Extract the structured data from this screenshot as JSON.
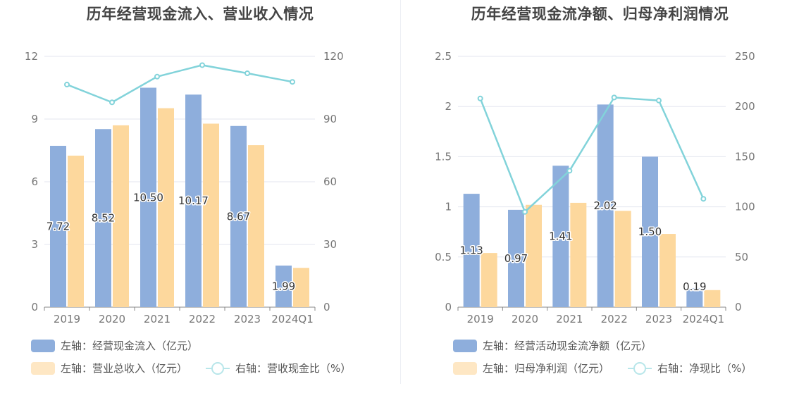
{
  "colors": {
    "bar1": "#8eaedc",
    "bar2": "#fdd89d",
    "line": "#82d3da",
    "grid": "#e3e6ef",
    "axis": "#888888"
  },
  "chart_data": [
    {
      "type": "bar+line",
      "title": "历年经营现金流入、营业收入情况",
      "categories": [
        "2019",
        "2020",
        "2021",
        "2022",
        "2023",
        "2024Q1"
      ],
      "left_axis": {
        "ylim": [
          0,
          12
        ],
        "ticks": [
          "0",
          "3",
          "6",
          "9",
          "12"
        ]
      },
      "right_axis": {
        "ylim": [
          0,
          120
        ],
        "ticks": [
          "0",
          "30",
          "60",
          "90",
          "120"
        ]
      },
      "series": [
        {
          "name": "左轴：经营现金流入（亿元）",
          "type": "bar",
          "axis": "left",
          "values": [
            7.72,
            8.52,
            10.5,
            10.17,
            8.67,
            1.99
          ],
          "labels": [
            "7.72",
            "8.52",
            "10.50",
            "10.17",
            "8.67",
            "1.99"
          ]
        },
        {
          "name": "左轴：营业总收入（亿元）",
          "type": "bar",
          "axis": "left",
          "values": [
            7.25,
            8.7,
            9.52,
            8.78,
            7.75,
            1.88
          ]
        },
        {
          "name": "右轴：营收现金比（%）",
          "type": "line",
          "axis": "right",
          "values": [
            106.5,
            98,
            110.3,
            115.8,
            111.9,
            107.8
          ]
        }
      ],
      "grid": true,
      "legend_position": "bottom"
    },
    {
      "type": "bar+line",
      "title": "历年经营现金流净额、归母净利润情况",
      "categories": [
        "2019",
        "2020",
        "2021",
        "2022",
        "2023",
        "2024Q1"
      ],
      "left_axis": {
        "ylim": [
          0,
          2.5
        ],
        "ticks": [
          "0",
          "0.5",
          "1",
          "1.5",
          "2",
          "2.5"
        ]
      },
      "right_axis": {
        "ylim": [
          0,
          250
        ],
        "ticks": [
          "0",
          "50",
          "100",
          "150",
          "200",
          "250"
        ]
      },
      "series": [
        {
          "name": "左轴：经营活动现金流净额（亿元）",
          "type": "bar",
          "axis": "left",
          "values": [
            1.13,
            0.97,
            1.41,
            2.02,
            1.5,
            0.19
          ],
          "labels": [
            "1.13",
            "0.97",
            "1.41",
            "2.02",
            "1.50",
            "0.19"
          ]
        },
        {
          "name": "左轴：归母净利润（亿元）",
          "type": "bar",
          "axis": "left",
          "values": [
            0.54,
            1.02,
            1.04,
            0.96,
            0.73,
            0.17
          ]
        },
        {
          "name": "右轴：净现比（%）",
          "type": "line",
          "axis": "right",
          "values": [
            208,
            95,
            136,
            209,
            206,
            108
          ]
        }
      ],
      "grid": true,
      "legend_position": "bottom"
    }
  ]
}
